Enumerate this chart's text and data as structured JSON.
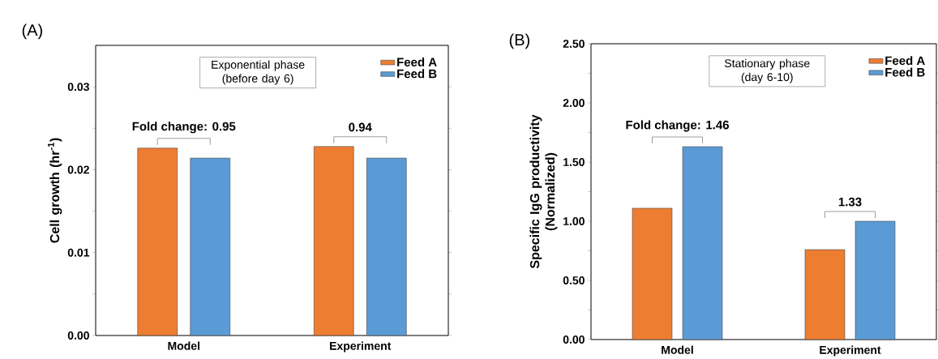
{
  "chart_data": [
    {
      "type": "bar",
      "title": "(A)",
      "subtitle": "Exponential phase (before day 6)",
      "ylabel": "Cell growth (hr$^{-1}$)",
      "categories": [
        "Model",
        "Experiment"
      ],
      "series": [
        {
          "name": "Feed A",
          "color": "#ed7d31",
          "values": [
            0.0226,
            0.0228
          ]
        },
        {
          "name": "Feed B",
          "color": "#5b9bd5",
          "values": [
            0.0214,
            0.0214
          ]
        }
      ],
      "ylim": [
        0,
        0.035
      ],
      "yticks": [
        {
          "value": 0,
          "label": "0.00"
        },
        {
          "value": 0.005,
          "label": null
        },
        {
          "value": 0.01,
          "label": "0.01"
        },
        {
          "value": 0.015,
          "label": null
        },
        {
          "value": 0.02,
          "label": "0.02"
        },
        {
          "value": 0.025,
          "label": null
        },
        {
          "value": 0.03,
          "label": "0.03"
        }
      ],
      "annotations": [
        "Fold change: 0.95",
        "0.94"
      ],
      "legend": "top right"
    },
    {
      "type": "bar",
      "title": "(B)",
      "subtitle": "Stationary phase (day 6-10)",
      "ylabel": "Specific IgG productivity (Normalized)",
      "categories": [
        "Model",
        "Experiment"
      ],
      "series": [
        {
          "name": "Feed A",
          "color": "#ed7d31",
          "values": [
            1.11,
            0.76
          ]
        },
        {
          "name": "Feed B",
          "color": "#5b9bd5",
          "values": [
            1.63,
            1.0
          ]
        }
      ],
      "ylim": [
        0,
        2.5
      ],
      "yticks": [
        {
          "value": 0,
          "label": "0.00"
        },
        {
          "value": 0.25,
          "label": null
        },
        {
          "value": 0.5,
          "label": "0.50"
        },
        {
          "value": 0.75,
          "label": null
        },
        {
          "value": 1.0,
          "label": "1.00"
        },
        {
          "value": 1.25,
          "label": null
        },
        {
          "value": 1.5,
          "label": "1.50"
        },
        {
          "value": 1.75,
          "label": null
        },
        {
          "value": 2.0,
          "label": "2.00"
        },
        {
          "value": 2.25,
          "label": null
        },
        {
          "value": 2.5,
          "label": "2.50"
        }
      ],
      "annotations": [
        "Fold change: 1.46",
        "1.33"
      ],
      "legend": "top right"
    }
  ]
}
